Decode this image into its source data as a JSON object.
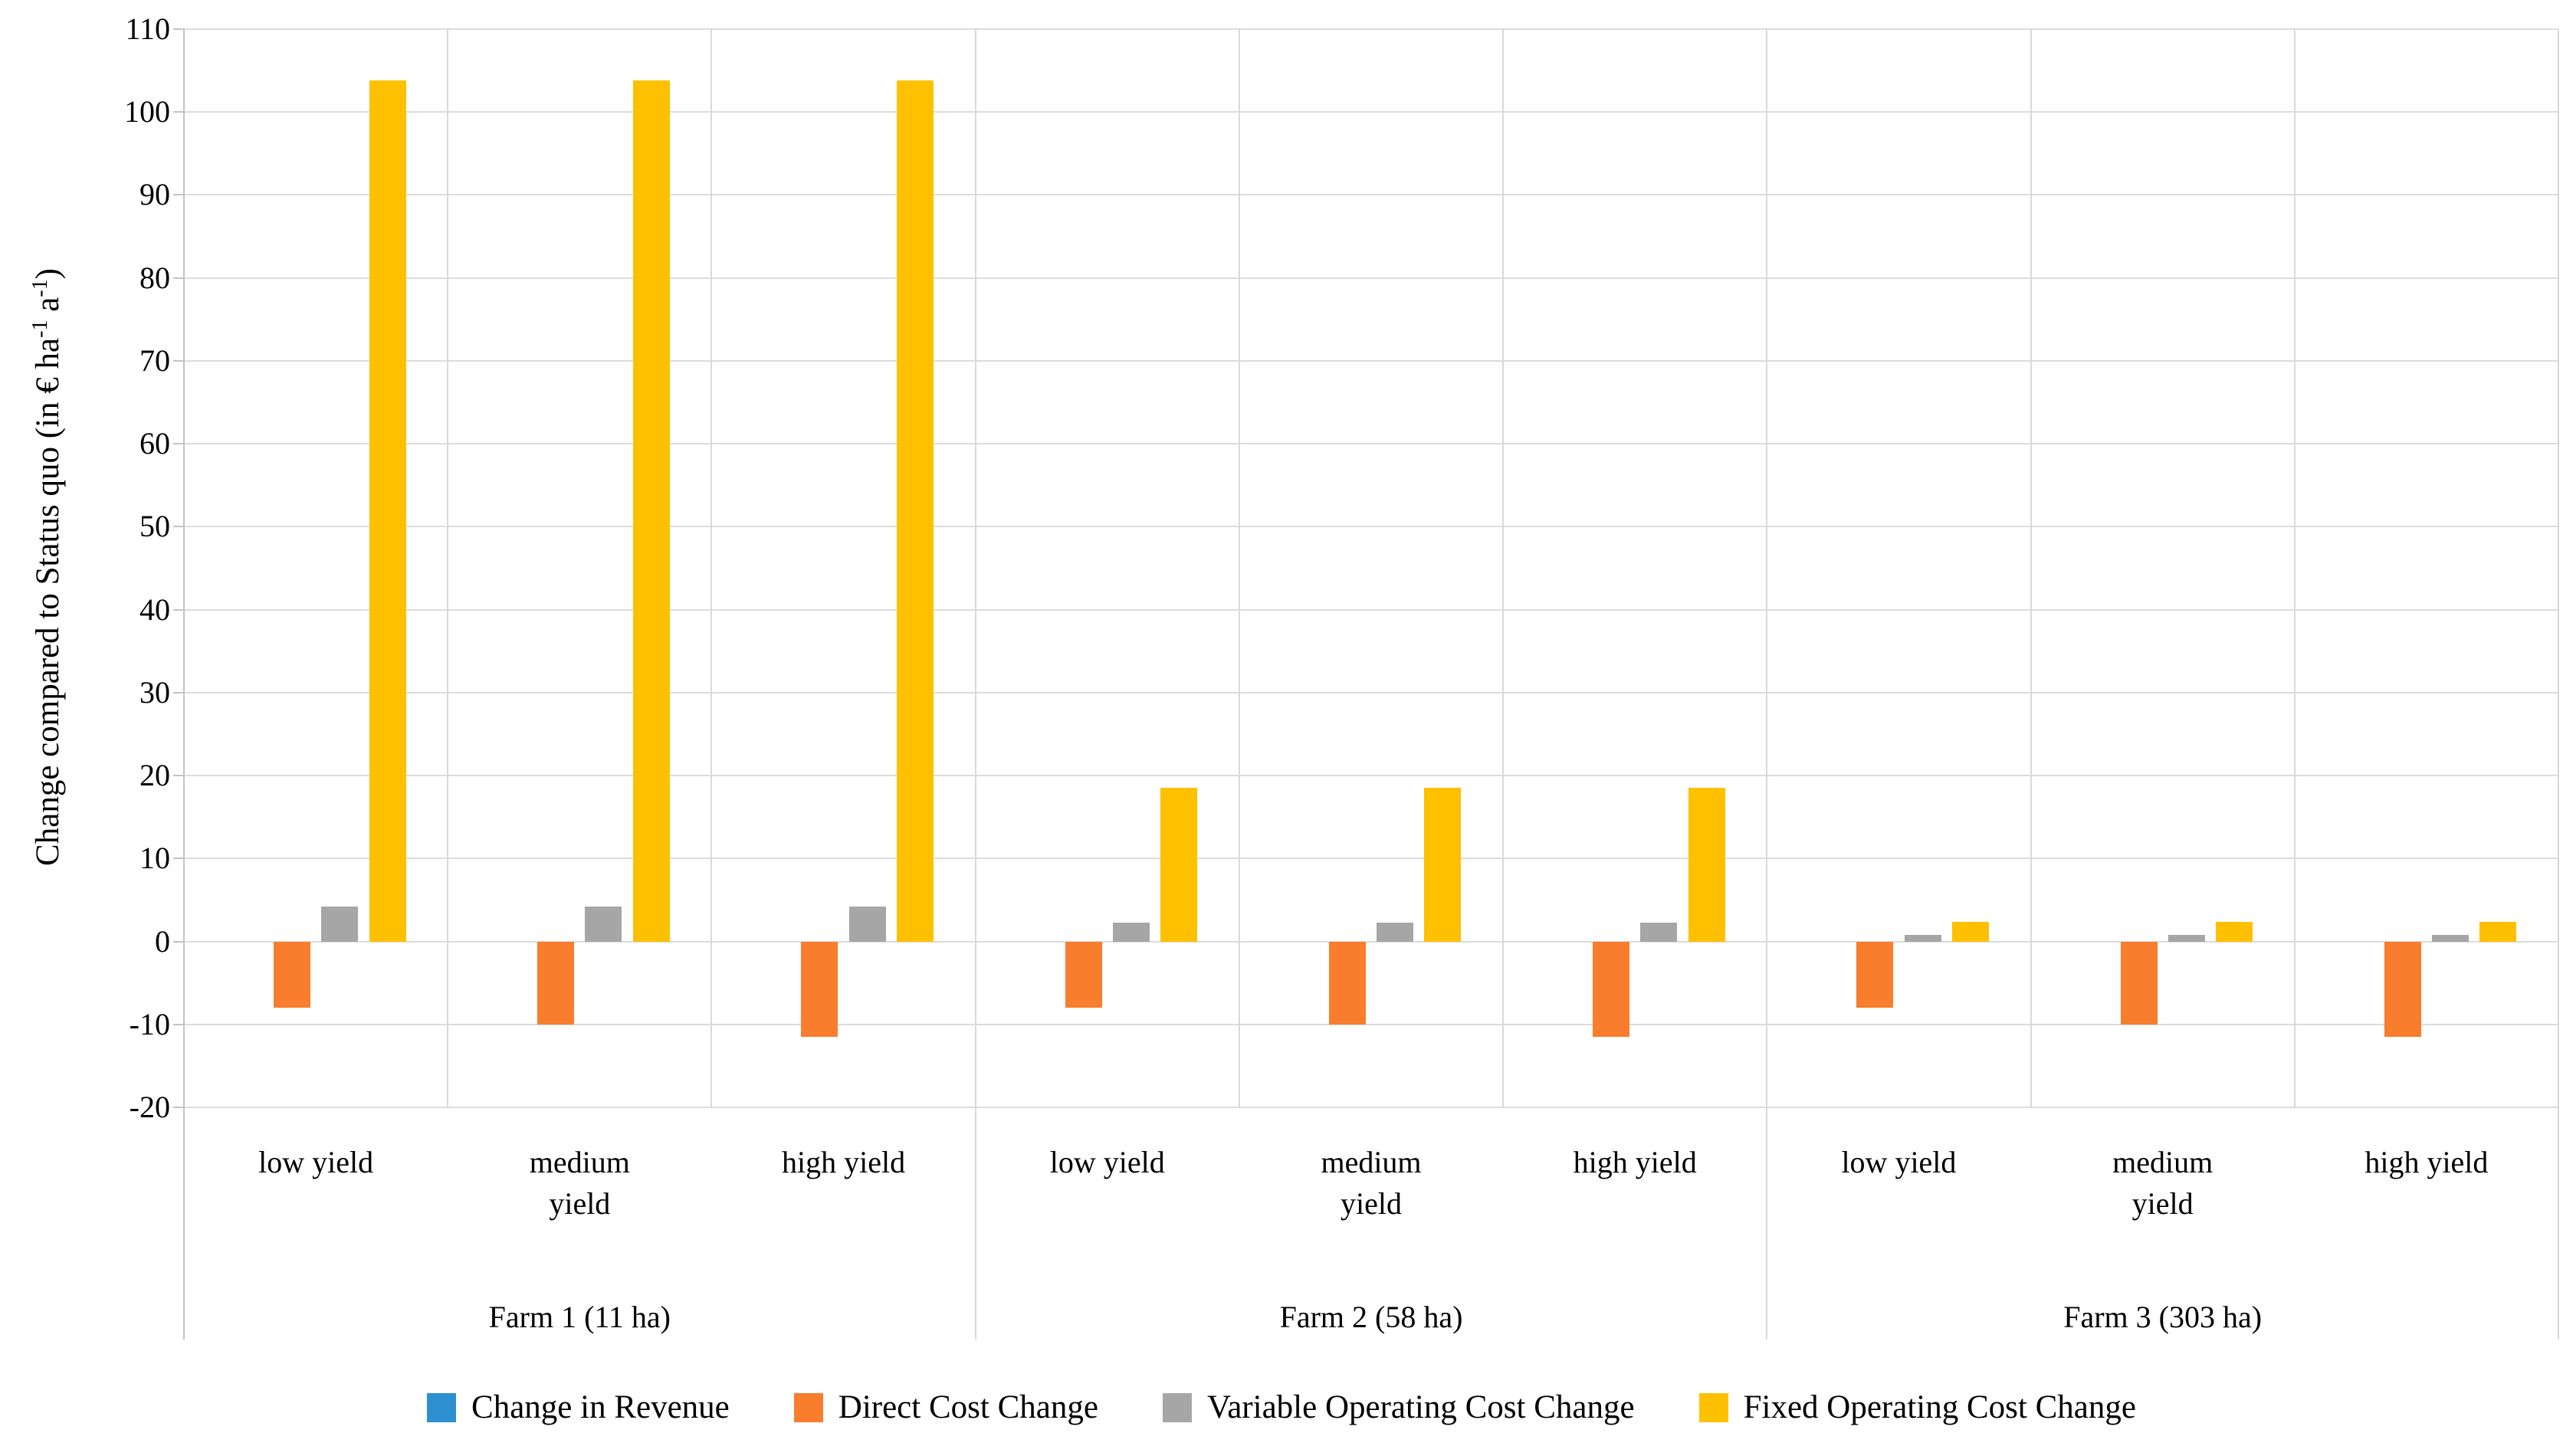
{
  "chart_data": {
    "type": "bar",
    "title": "",
    "y_axis": {
      "min": -20,
      "max": 110,
      "step": 10,
      "ticks": [
        110,
        100,
        90,
        80,
        70,
        60,
        50,
        40,
        30,
        20,
        10,
        0,
        -10,
        -20
      ],
      "title_parts": {
        "pre": "Change compared to Status quo (in € ha",
        "sup1": "-1",
        "mid": " a",
        "sup2": "-1",
        "post": ")"
      }
    },
    "farms": [
      {
        "label": "Farm 1 (11 ha)",
        "categories": [
          "low yield",
          "medium yield",
          "high yield"
        ]
      },
      {
        "label": "Farm 2 (58 ha)",
        "categories": [
          "low yield",
          "medium yield",
          "high yield"
        ]
      },
      {
        "label": "Farm 3 (303 ha)",
        "categories": [
          "low yield",
          "medium yield",
          "high yield"
        ]
      }
    ],
    "series": [
      {
        "name": "Change in Revenue",
        "color": "#2e90d1",
        "values": [
          [
            0,
            0,
            0
          ],
          [
            0,
            0,
            0
          ],
          [
            0,
            0,
            0
          ]
        ]
      },
      {
        "name": "Direct Cost Change",
        "color": "#f87d2c",
        "values": [
          [
            -8,
            -10,
            -11.5
          ],
          [
            -8,
            -10,
            -11.5
          ],
          [
            -8,
            -10,
            -11.5
          ]
        ]
      },
      {
        "name": "Variable Operating Cost Change",
        "color": "#a6a6a6",
        "values": [
          [
            4.2,
            4.2,
            4.2
          ],
          [
            2.3,
            2.3,
            2.3
          ],
          [
            0.8,
            0.8,
            0.8
          ]
        ]
      },
      {
        "name": "Fixed Operating Cost Change",
        "color": "#ffc000",
        "values": [
          [
            103.8,
            103.8,
            103.8
          ],
          [
            18.5,
            18.5,
            18.5
          ],
          [
            2.4,
            2.4,
            2.4
          ]
        ]
      }
    ],
    "layout_hints": {
      "grid": true,
      "legend_position": "bottom",
      "group_separators": true
    }
  }
}
